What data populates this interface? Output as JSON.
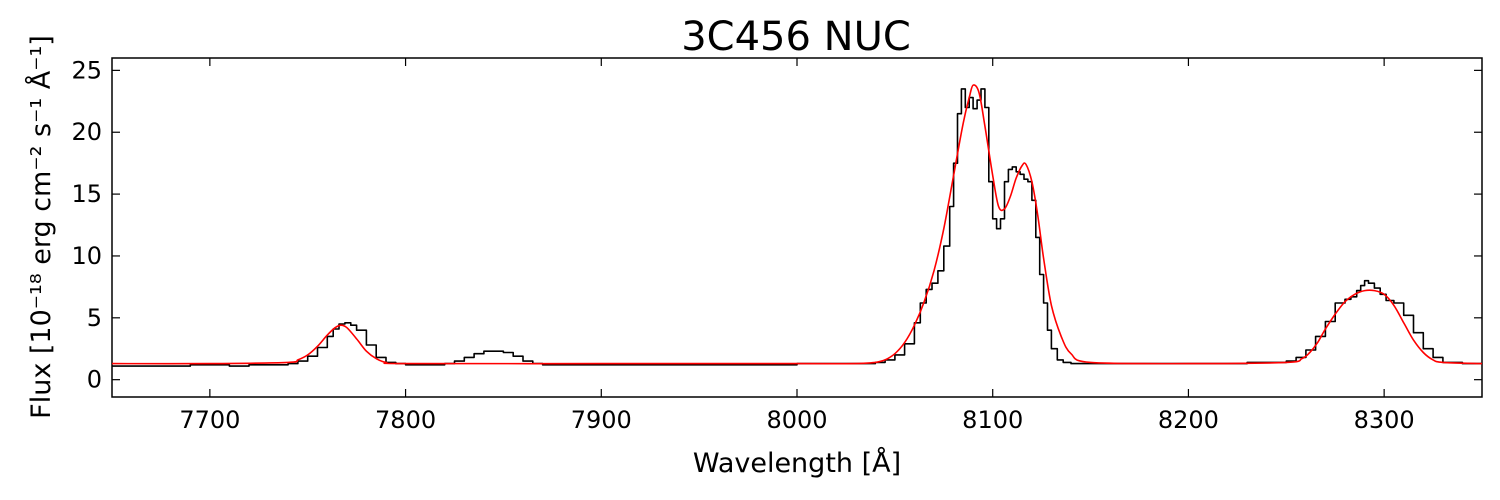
{
  "chart_data": {
    "type": "line",
    "title": "3C456 NUC",
    "xlabel": "Wavelength [Å]",
    "ylabel": "Flux [10⁻¹⁸ erg cm⁻² s⁻¹ Å⁻¹]",
    "xlim": [
      7650,
      8350
    ],
    "ylim": [
      -1.4,
      26
    ],
    "xticks": [
      7700,
      7800,
      7900,
      8000,
      8100,
      8200,
      8300
    ],
    "yticks": [
      0,
      5,
      10,
      15,
      20,
      25
    ],
    "grid": false,
    "legend": "none",
    "series": [
      {
        "style": "step",
        "color": "#000000",
        "x": [
          7650,
          7660,
          7670,
          7680,
          7690,
          7700,
          7710,
          7720,
          7730,
          7740,
          7745,
          7750,
          7755,
          7760,
          7763,
          7766,
          7769,
          7772,
          7775,
          7780,
          7785,
          7790,
          7795,
          7800,
          7810,
          7820,
          7825,
          7830,
          7835,
          7840,
          7845,
          7850,
          7855,
          7860,
          7865,
          7870,
          7880,
          7900,
          7920,
          7940,
          7960,
          7980,
          8000,
          8020,
          8040,
          8045,
          8050,
          8055,
          8060,
          8063,
          8066,
          8069,
          8072,
          8075,
          8078,
          8080,
          8082,
          8084,
          8086,
          8088,
          8090,
          8092,
          8094,
          8096,
          8098,
          8100,
          8102,
          8104,
          8106,
          8108,
          8110,
          8112,
          8114,
          8116,
          8118,
          8120,
          8122,
          8124,
          8126,
          8128,
          8130,
          8133,
          8136,
          8140,
          8150,
          8170,
          8190,
          8210,
          8230,
          8240,
          8245,
          8250,
          8255,
          8260,
          8265,
          8270,
          8275,
          8280,
          8283,
          8286,
          8288,
          8290,
          8292,
          8295,
          8298,
          8301,
          8305,
          8310,
          8315,
          8320,
          8325,
          8330,
          8340,
          8350
        ],
        "y": [
          1.1,
          1.1,
          1.1,
          1.1,
          1.2,
          1.2,
          1.1,
          1.2,
          1.2,
          1.3,
          1.5,
          1.9,
          2.6,
          3.5,
          4.1,
          4.5,
          4.6,
          4.4,
          4.0,
          2.8,
          1.8,
          1.4,
          1.3,
          1.2,
          1.2,
          1.3,
          1.5,
          1.8,
          2.1,
          2.3,
          2.3,
          2.2,
          1.9,
          1.5,
          1.3,
          1.2,
          1.2,
          1.2,
          1.2,
          1.2,
          1.2,
          1.2,
          1.3,
          1.3,
          1.4,
          1.6,
          2.0,
          2.9,
          4.6,
          6.2,
          7.3,
          7.8,
          8.8,
          10.8,
          14.0,
          17.5,
          21.5,
          23.5,
          22.0,
          22.8,
          21.9,
          22.6,
          23.5,
          22.0,
          16.0,
          13.0,
          12.2,
          13.0,
          16.0,
          17.0,
          17.2,
          16.8,
          16.6,
          16.2,
          16.0,
          14.5,
          11.5,
          8.5,
          6.2,
          4.0,
          2.5,
          1.6,
          1.4,
          1.3,
          1.3,
          1.3,
          1.3,
          1.3,
          1.4,
          1.4,
          1.4,
          1.5,
          1.8,
          2.4,
          3.5,
          4.7,
          6.2,
          6.5,
          6.7,
          7.2,
          7.6,
          8.0,
          7.8,
          7.4,
          6.9,
          6.4,
          6.2,
          5.2,
          3.8,
          2.5,
          1.8,
          1.4,
          1.3,
          1.3
        ]
      },
      {
        "style": "smooth",
        "color": "#ff0000",
        "x": [
          7650,
          7700,
          7740,
          7745,
          7750,
          7755,
          7760,
          7764,
          7767,
          7770,
          7775,
          7780,
          7785,
          7790,
          7800,
          7900,
          8000,
          8030,
          8040,
          8045,
          8050,
          8055,
          8060,
          8065,
          8070,
          8075,
          8080,
          8085,
          8088,
          8090,
          8093,
          8096,
          8100,
          8103,
          8106,
          8109,
          8112,
          8115,
          8117,
          8120,
          8123,
          8126,
          8130,
          8135,
          8140,
          8150,
          8200,
          8250,
          8258,
          8262,
          8266,
          8270,
          8275,
          8280,
          8285,
          8290,
          8295,
          8300,
          8305,
          8310,
          8315,
          8320,
          8325,
          8330,
          8350
        ],
        "y": [
          1.3,
          1.3,
          1.4,
          1.6,
          2.0,
          2.7,
          3.6,
          4.2,
          4.4,
          4.2,
          3.3,
          2.3,
          1.7,
          1.4,
          1.3,
          1.3,
          1.3,
          1.3,
          1.4,
          1.6,
          2.1,
          3.0,
          4.4,
          6.3,
          8.8,
          12.2,
          16.5,
          20.8,
          22.8,
          23.8,
          23.2,
          20.5,
          16.5,
          14.0,
          13.8,
          14.8,
          16.3,
          17.3,
          17.4,
          16.0,
          13.3,
          9.8,
          6.0,
          3.5,
          2.1,
          1.4,
          1.3,
          1.4,
          1.7,
          2.2,
          3.0,
          4.1,
          5.3,
          6.3,
          6.9,
          7.2,
          7.2,
          6.9,
          6.0,
          4.6,
          3.2,
          2.2,
          1.6,
          1.4,
          1.3
        ]
      }
    ]
  }
}
